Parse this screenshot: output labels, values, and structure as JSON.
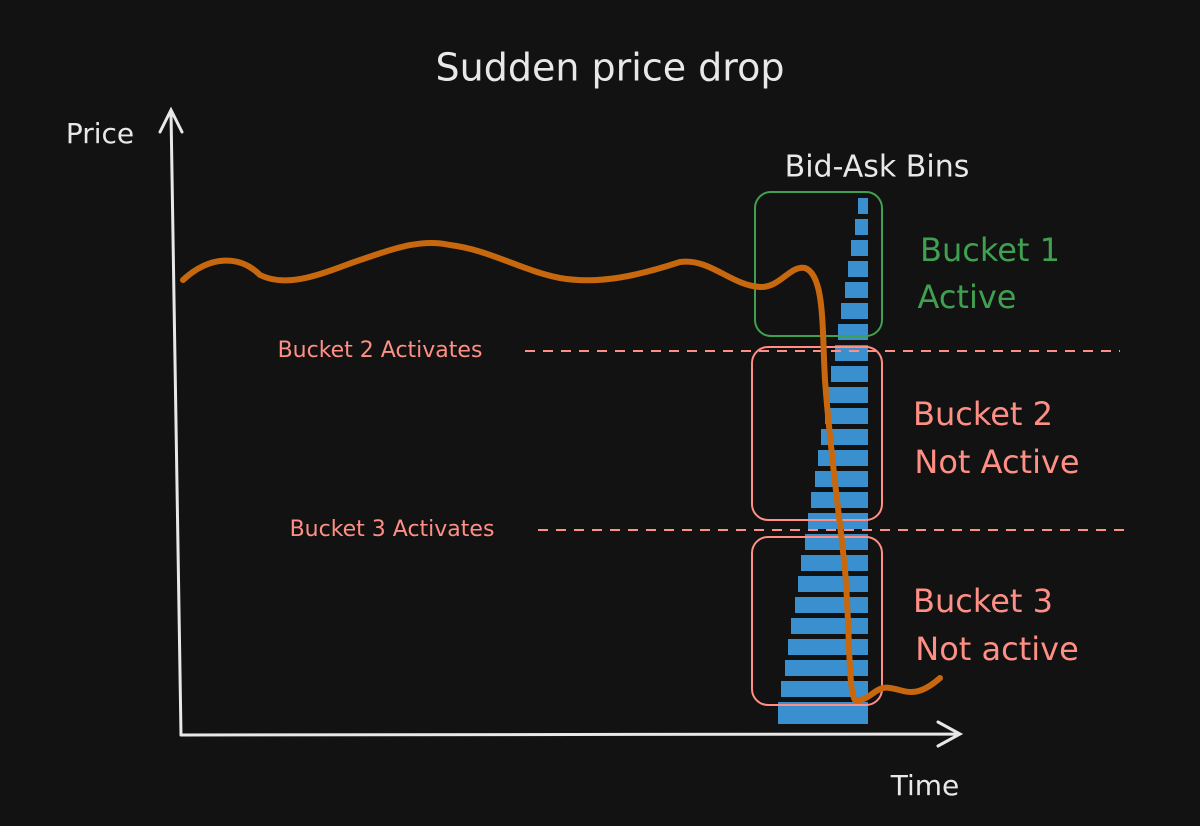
{
  "title": "Sudden price drop",
  "axes": {
    "y_label": "Price",
    "x_label": "Time"
  },
  "bins_label": "Bid-Ask Bins",
  "thresholds": [
    {
      "label": "Bucket 2 Activates"
    },
    {
      "label": "Bucket 3 Activates"
    }
  ],
  "buckets": [
    {
      "name": "Bucket 1",
      "status": "Active"
    },
    {
      "name": "Bucket 2",
      "status": "Not Active"
    },
    {
      "name": "Bucket 3",
      "status": "Not active"
    }
  ]
}
